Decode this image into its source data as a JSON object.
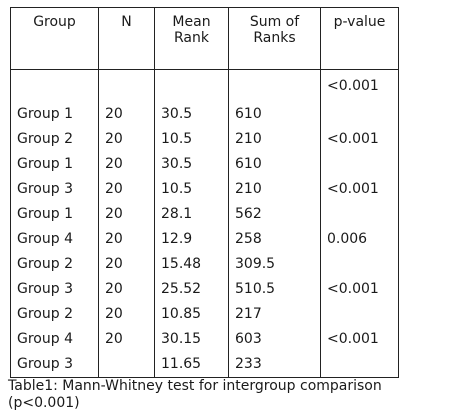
{
  "table": {
    "headers": [
      "Group",
      "N",
      "Mean Rank",
      "Sum of Ranks",
      "p-value"
    ],
    "rows": [
      [
        "",
        "",
        "",
        "",
        "<0.001"
      ],
      [
        "Group 1",
        "20",
        "30.5",
        "610",
        ""
      ],
      [
        "Group 2",
        "20",
        "10.5",
        "210",
        "<0.001"
      ],
      [
        "Group 1",
        "20",
        "30.5",
        "610",
        ""
      ],
      [
        "Group 3",
        "20",
        "10.5",
        "210",
        "<0.001"
      ],
      [
        "Group 1",
        "20",
        "28.1",
        "562",
        ""
      ],
      [
        "Group 4",
        "20",
        "12.9",
        "258",
        "0.006"
      ],
      [
        "Group 2",
        "20",
        "15.48",
        "309.5",
        ""
      ],
      [
        "Group 3",
        "20",
        "25.52",
        "510.5",
        "<0.001"
      ],
      [
        "Group 2",
        "20",
        "10.85",
        "217",
        ""
      ],
      [
        "Group 4",
        "20",
        "30.15",
        "603",
        "<0.001"
      ],
      [
        "Group 3",
        "",
        "11.65",
        "233",
        ""
      ]
    ]
  },
  "caption": {
    "line1": "Table1: Mann-Whitney test for intergroup comparison",
    "line2": "(p<0.001)"
  }
}
